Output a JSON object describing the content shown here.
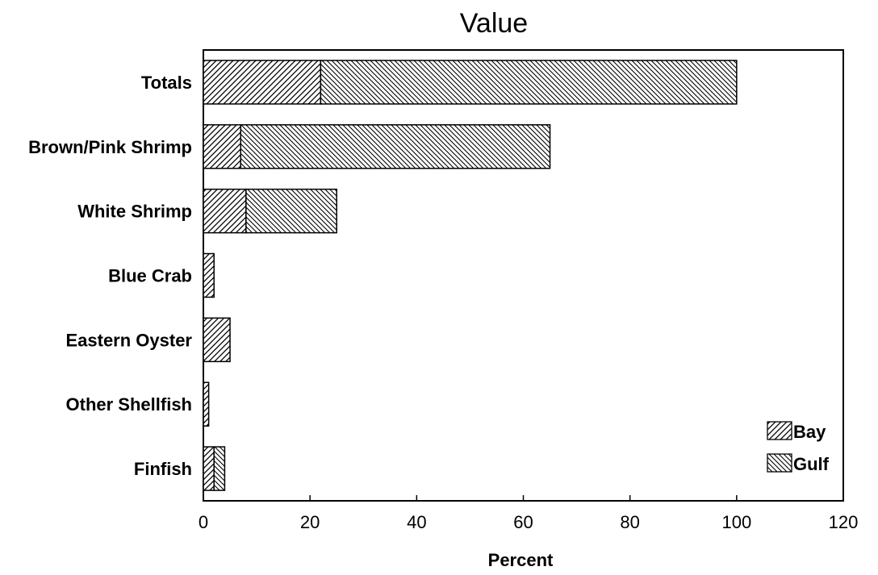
{
  "chart_data": {
    "type": "bar",
    "orientation": "horizontal",
    "stacked": true,
    "title": "Value",
    "xlabel": "Percent",
    "ylabel": "",
    "xlim": [
      0,
      120
    ],
    "xticks": [
      "0",
      "20",
      "40",
      "60",
      "80",
      "100",
      "120"
    ],
    "categories": [
      "Totals",
      "Brown/Pink Shrimp",
      "White Shrimp",
      "Blue Crab",
      "Eastern Oyster",
      "Other Shellfish",
      "Finfish"
    ],
    "series": [
      {
        "name": "Bay",
        "values": [
          22,
          7,
          8,
          2,
          5,
          1,
          2
        ],
        "pattern": "forward-hatch"
      },
      {
        "name": "Gulf",
        "values": [
          78,
          58,
          17,
          0,
          0,
          0,
          2
        ],
        "pattern": "back-hatch"
      }
    ],
    "legend_position": "bottom-right",
    "grid": false
  }
}
